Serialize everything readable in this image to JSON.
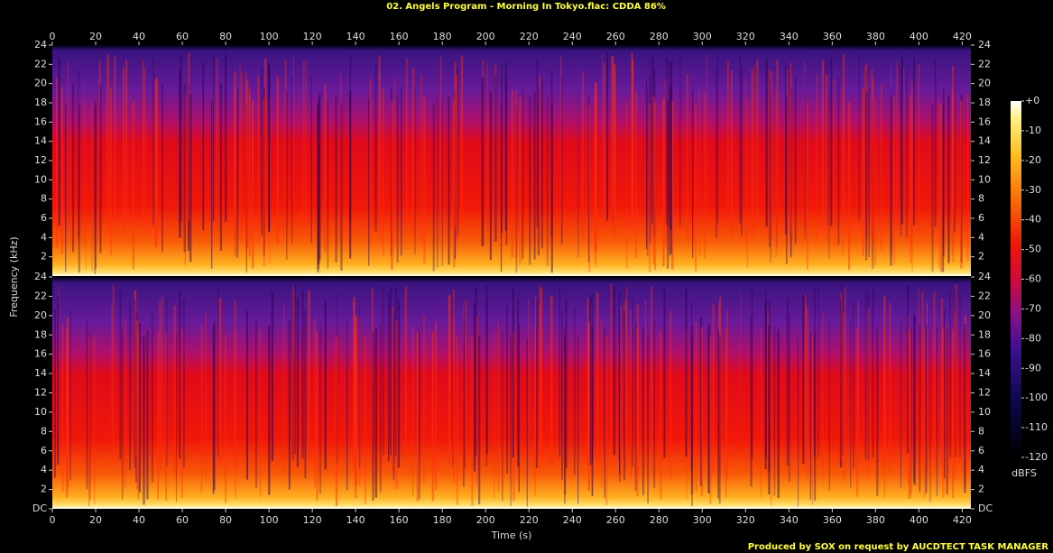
{
  "chart_data": {
    "type": "spectrogram",
    "title": "02. Angels Program - Morning In Tokyo.flac: CDDA 86%",
    "xlabel": "Time (s)",
    "ylabel": "Frequency (kHz)",
    "xlim": [
      0,
      424
    ],
    "xticks": [
      0,
      20,
      40,
      60,
      80,
      100,
      120,
      140,
      160,
      180,
      200,
      220,
      240,
      260,
      280,
      300,
      320,
      340,
      360,
      380,
      400,
      420
    ],
    "channels": [
      {
        "ylim": [
          0,
          24
        ],
        "yticks": [
          2,
          4,
          6,
          8,
          10,
          12,
          14,
          16,
          18,
          20,
          22,
          24
        ]
      },
      {
        "ylim": [
          0,
          24
        ],
        "yticks": [
          {
            "value": 0,
            "label": "DC"
          },
          2,
          4,
          6,
          8,
          10,
          12,
          14,
          16,
          18,
          20,
          22,
          24
        ]
      }
    ],
    "colorbar": {
      "label": "dBFS",
      "lim": [
        -120,
        0
      ],
      "ticks": [
        {
          "value": 0,
          "label": "+0"
        },
        -10,
        -20,
        -30,
        -40,
        -50,
        -60,
        -70,
        -80,
        -90,
        -100,
        -110,
        -120
      ]
    },
    "footer": "Produced by SOX on request by AUCDTECT TASK MANAGER"
  }
}
